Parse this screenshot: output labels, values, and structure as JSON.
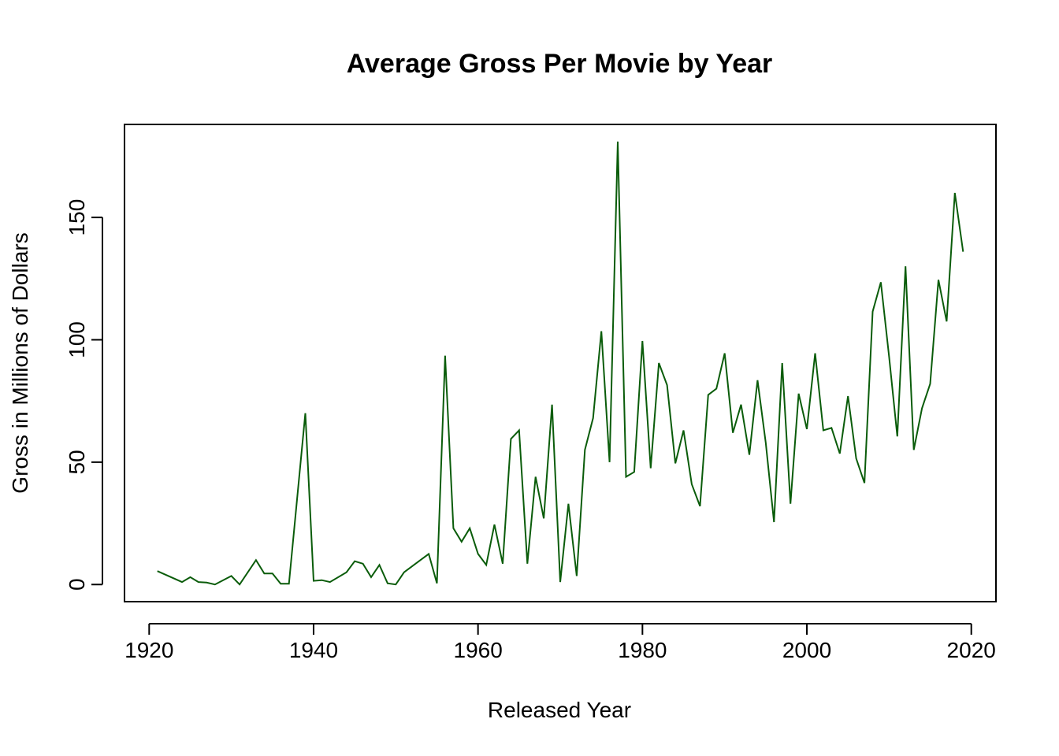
{
  "chart_data": {
    "type": "line",
    "title": "Average Gross Per Movie by Year",
    "xlabel": "Released Year",
    "ylabel": "Gross in Millions of Dollars",
    "xlim": [
      1917,
      2023
    ],
    "ylim": [
      -7,
      188
    ],
    "x_ticks": [
      1920,
      1940,
      1960,
      1980,
      2000,
      2020
    ],
    "y_ticks": [
      0,
      50,
      100,
      150
    ],
    "grid": false,
    "line_color": "#0a5c0a",
    "series": [
      {
        "name": "Average Gross",
        "x": [
          1921,
          1924,
          1925,
          1926,
          1927,
          1928,
          1930,
          1931,
          1933,
          1934,
          1935,
          1936,
          1937,
          1939,
          1940,
          1941,
          1942,
          1944,
          1945,
          1946,
          1947,
          1948,
          1949,
          1950,
          1951,
          1952,
          1953,
          1954,
          1955,
          1956,
          1957,
          1958,
          1959,
          1960,
          1961,
          1962,
          1963,
          1964,
          1965,
          1966,
          1967,
          1968,
          1969,
          1970,
          1971,
          1972,
          1973,
          1974,
          1975,
          1976,
          1977,
          1978,
          1979,
          1980,
          1981,
          1982,
          1983,
          1984,
          1985,
          1986,
          1987,
          1988,
          1989,
          1990,
          1991,
          1992,
          1993,
          1994,
          1995,
          1996,
          1997,
          1998,
          1999,
          2000,
          2001,
          2002,
          2003,
          2004,
          2005,
          2006,
          2007,
          2008,
          2009,
          2010,
          2011,
          2012,
          2013,
          2014,
          2015,
          2016,
          2017,
          2018,
          2019
        ],
        "y": [
          5.5,
          1,
          3,
          1,
          0.8,
          0,
          3.5,
          0,
          10,
          4.5,
          4.5,
          0.3,
          0.3,
          70,
          1.5,
          1.8,
          1,
          5,
          9.5,
          8.5,
          3,
          8,
          0.5,
          0,
          5,
          7.5,
          10,
          12.5,
          0.5,
          93.5,
          23,
          17.5,
          23,
          12.5,
          8,
          24.5,
          8.5,
          59.5,
          63,
          8.5,
          44,
          27,
          73.5,
          1,
          33,
          3.5,
          55,
          68,
          103.5,
          50,
          181,
          44,
          46,
          99.5,
          47.5,
          90.5,
          81.5,
          49.5,
          63,
          41,
          32,
          77.5,
          80,
          94.5,
          62,
          73.5,
          53,
          83.5,
          58,
          25.5,
          90.5,
          33,
          78,
          63.5,
          94.5,
          63,
          64,
          53.5,
          77,
          51.5,
          41.5,
          111.5,
          123.5,
          93,
          60.5,
          130,
          55,
          72,
          82,
          124.5,
          107.5,
          160,
          136
        ]
      }
    ]
  }
}
